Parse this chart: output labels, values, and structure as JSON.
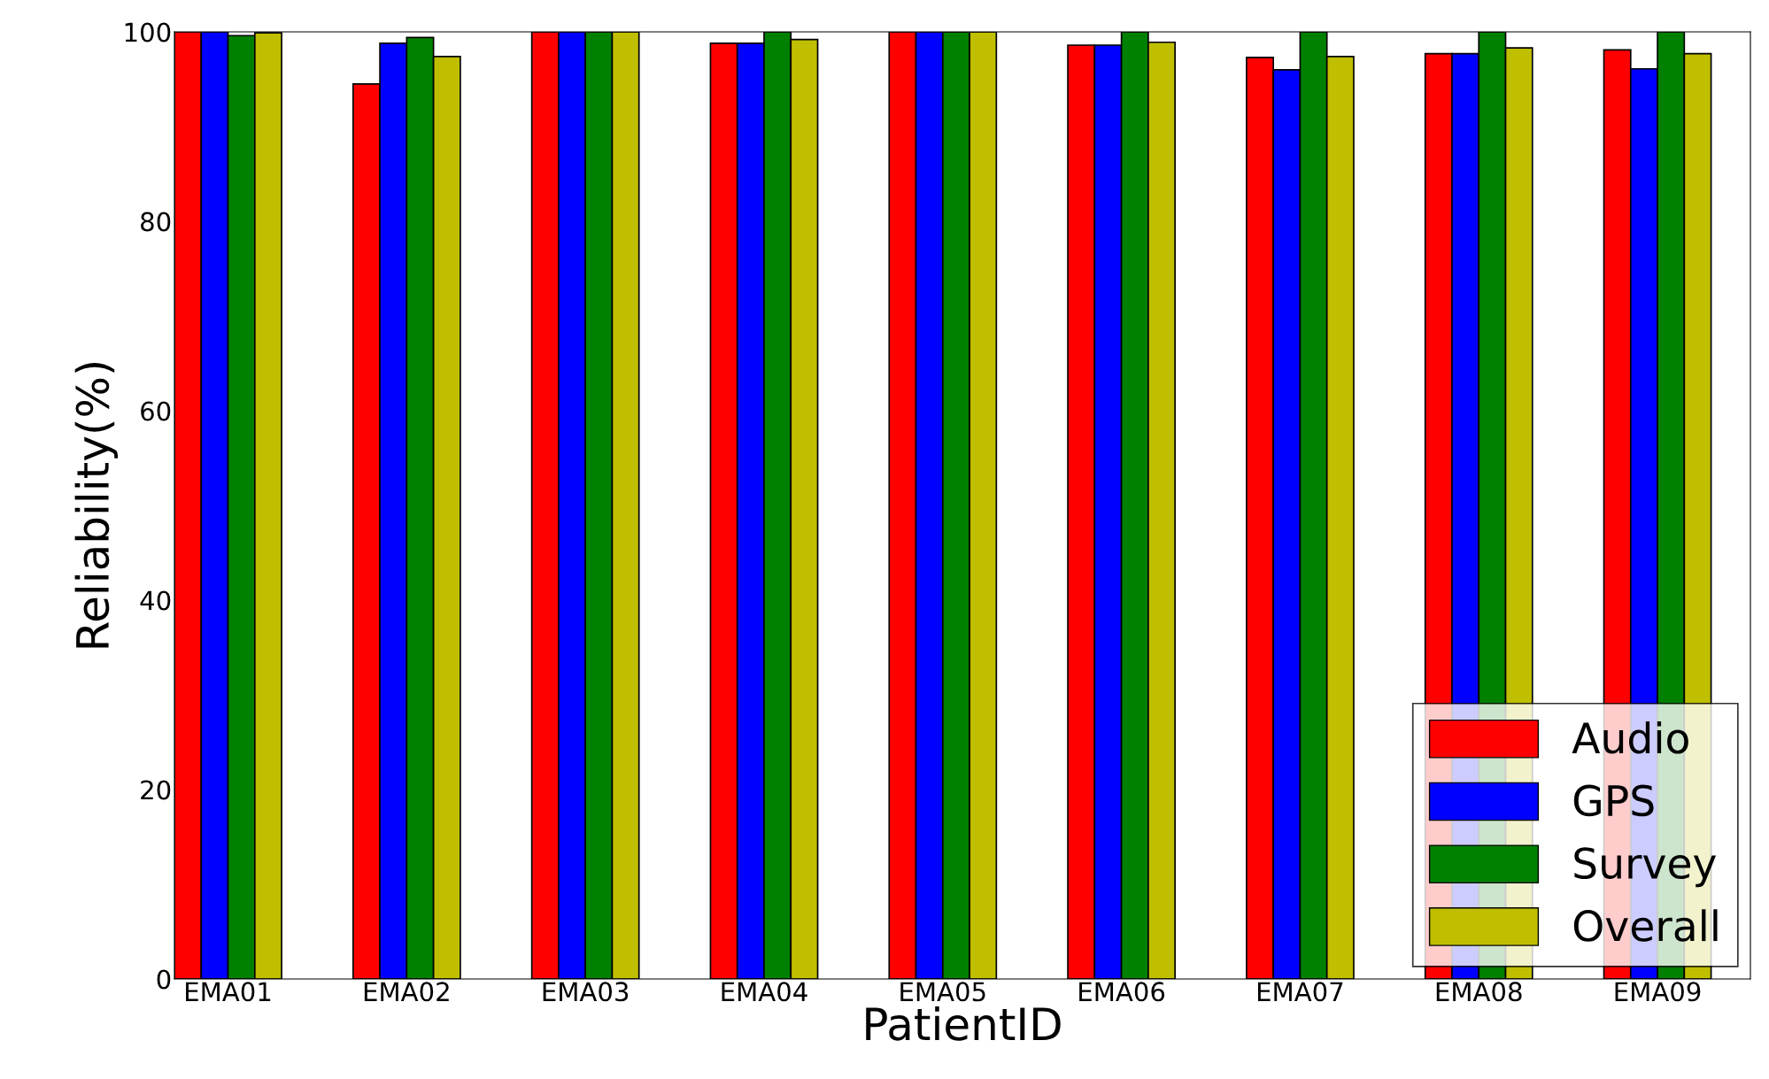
{
  "chart_data": {
    "type": "bar",
    "xlabel": "PatientID",
    "ylabel": "Reliability(%)",
    "categories": [
      "EMA01",
      "EMA02",
      "EMA03",
      "EMA04",
      "EMA05",
      "EMA06",
      "EMA07",
      "EMA08",
      "EMA09"
    ],
    "series": [
      {
        "name": "Audio",
        "color": "#ff0000",
        "values": [
          100,
          94.5,
          100,
          98.8,
          100,
          98.6,
          97.3,
          97.7,
          98.1
        ]
      },
      {
        "name": "GPS",
        "color": "#0000ff",
        "values": [
          100,
          98.8,
          100,
          98.8,
          100,
          98.6,
          96.0,
          97.7,
          96.1
        ]
      },
      {
        "name": "Survey",
        "color": "#008000",
        "values": [
          99.6,
          99.4,
          100,
          100,
          100,
          100,
          100,
          100,
          100
        ]
      },
      {
        "name": "Overall",
        "color": "#bfbf00",
        "values": [
          99.9,
          97.4,
          100,
          99.2,
          100,
          98.9,
          97.4,
          98.3,
          97.7
        ]
      }
    ],
    "ylim": [
      0,
      100
    ],
    "yticks": [
      0,
      20,
      40,
      60,
      80,
      100
    ],
    "grid": false,
    "legend": "bottom right"
  }
}
